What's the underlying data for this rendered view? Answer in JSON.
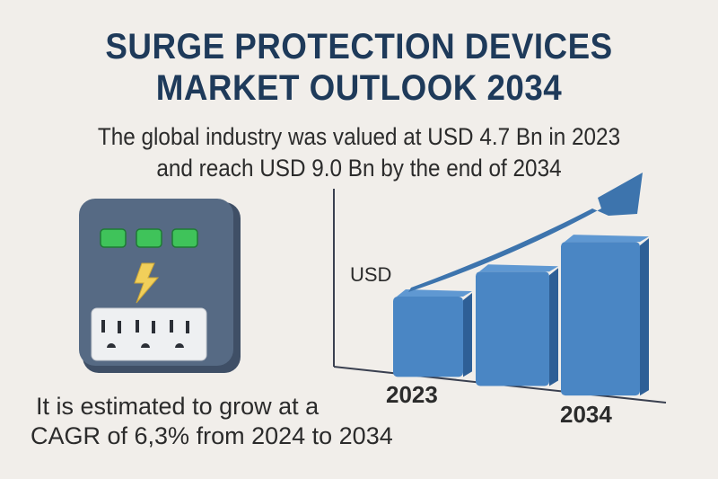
{
  "header": {
    "title_line1": "SURGE PROTECTION DEVICES",
    "title_line2": "MARKET OUTLOOK 2034",
    "subtitle_line1": "The global industry was valued at USD 4.7 Bn in 2023",
    "subtitle_line2": "and reach USD 9.0 Bn by the end of 2034"
  },
  "footer": {
    "cagr_line1": "It is estimated to grow at a",
    "cagr_line2": "CAGR of 6,3% from 2024 to 2034"
  },
  "device_icon": {
    "name": "surge-protector",
    "indicator_count": 3,
    "outlet_count": 3,
    "colors": {
      "body": "#566a84",
      "indicator": "#3fc35a",
      "bolt": "#f1cf5a",
      "outlet_panel": "#eef0f2"
    }
  },
  "colors": {
    "title": "#1e3a5a",
    "bar": "#4a86c4",
    "bar_dark": "#2e5f96",
    "background": "#f1eeea"
  },
  "chart_data": {
    "type": "bar",
    "title": "",
    "ylabel": "USD",
    "xlabel": "",
    "categories": [
      "2023",
      "",
      "2034"
    ],
    "values": [
      4.7,
      6.7,
      9.0
    ],
    "ylim": [
      0,
      12
    ],
    "grid": false,
    "legend": "none",
    "annotations": [
      "upward trend arrow"
    ]
  }
}
